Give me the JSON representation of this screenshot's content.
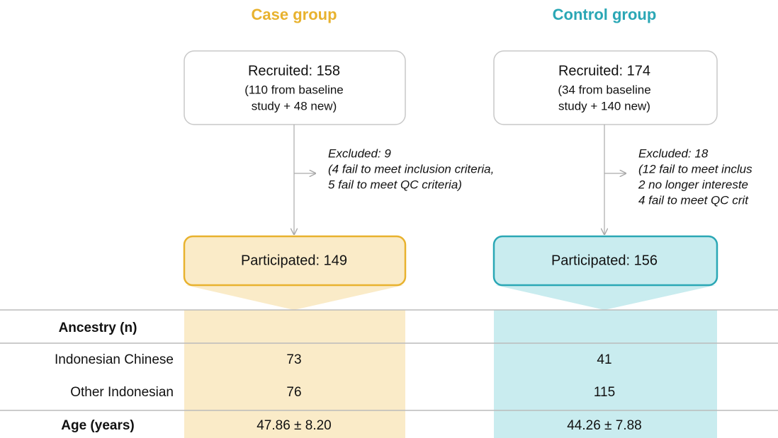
{
  "groups": [
    {
      "title": "Case group",
      "color": "#e8b22e",
      "fill": "#faebc8",
      "recruited": {
        "title": "Recruited: 158",
        "lines": [
          "(110 from baseline",
          "study + 48 new)"
        ]
      },
      "excluded": [
        "Excluded: 9",
        "(4 fail to meet inclusion criteria,",
        "5 fail to meet QC criteria)"
      ],
      "participated": "Participated: 149"
    },
    {
      "title": "Control group",
      "color": "#2aa7b5",
      "fill": "#c9ecef",
      "recruited": {
        "title": "Recruited: 174",
        "lines": [
          "(34 from baseline",
          "study + 140 new)"
        ]
      },
      "excluded": [
        "Excluded: 18",
        "(12 fail to meet inclus",
        "2 no longer intereste",
        "4 fail to meet QC crit"
      ],
      "participated": "Participated: 156"
    }
  ],
  "table": {
    "header": "Ancestry (n)",
    "rows": [
      [
        "Indonesian Chinese",
        "73",
        "41"
      ],
      [
        "Other Indonesian",
        "76",
        "115"
      ]
    ],
    "footer": [
      "Age (years)",
      "47.86 ± 8.20",
      "44.26 ± 7.88"
    ]
  }
}
